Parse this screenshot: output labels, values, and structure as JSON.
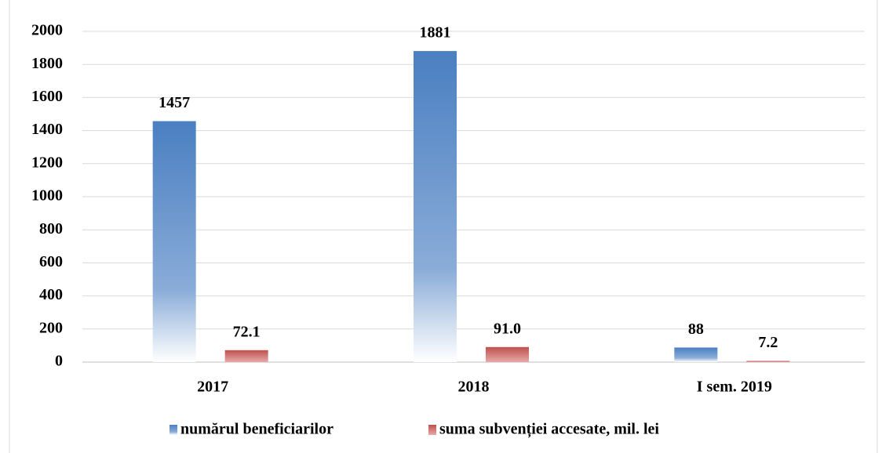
{
  "chart_data": {
    "type": "bar",
    "categories": [
      "2017",
      "2018",
      "I sem. 2019"
    ],
    "series": [
      {
        "name": "numărul beneficiarilor",
        "color": "#4a7fc1",
        "values": [
          1457,
          1881,
          88
        ]
      },
      {
        "name": "suma subvenției accesate, mil. lei",
        "color": "#c0504d",
        "values": [
          72.1,
          91.0,
          7.2
        ],
        "value_labels": [
          "72.1",
          "91.0",
          "7.2"
        ]
      }
    ],
    "ylim": [
      0,
      2000
    ],
    "yticks": [
      0,
      200,
      400,
      600,
      800,
      1000,
      1200,
      1400,
      1600,
      1800,
      2000
    ],
    "grid": true,
    "legend": "bottom"
  }
}
